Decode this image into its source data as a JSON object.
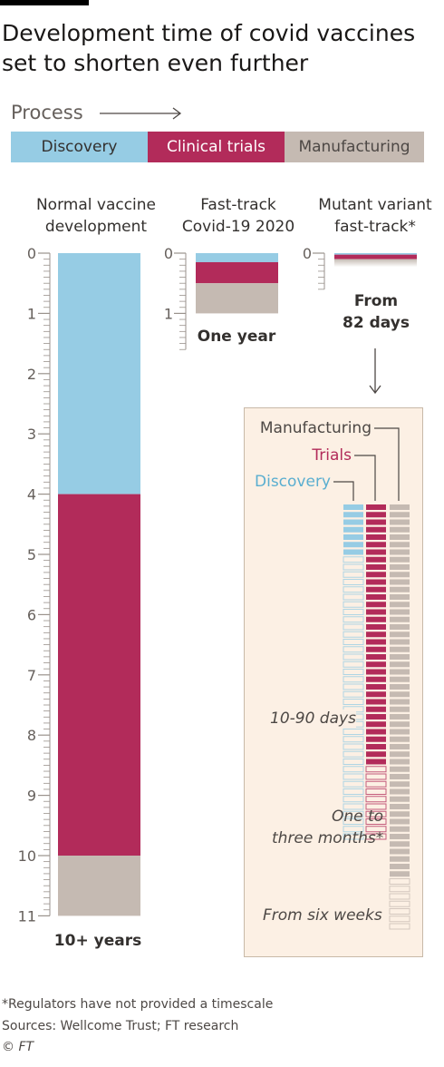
{
  "title_lines": [
    "Development time of covid vaccines",
    "set to shorten even further"
  ],
  "process": {
    "label": "Process"
  },
  "legend": [
    {
      "label": "Discovery",
      "color": "#96cce4",
      "text_color": "#33302e"
    },
    {
      "label": "Clinical trials",
      "color": "#b22b5a",
      "text_color": "#ffffff"
    },
    {
      "label": "Manufacturing",
      "color": "#c5bab2",
      "text_color": "#4d4845"
    }
  ],
  "colors": {
    "discovery": "#96cce4",
    "trials": "#b22b5a",
    "manufacturing": "#c5bab2",
    "detail_panel": "#fcf0e4",
    "panel_border": "#c8b9a8",
    "axis": "#9a928c"
  },
  "chart_data": {
    "type": "bar",
    "y_axis": {
      "unit": "years",
      "range": [
        0,
        11
      ],
      "tick_labels": [
        "0",
        "1",
        "2",
        "3",
        "4",
        "5",
        "6",
        "7",
        "8",
        "9",
        "10",
        "11"
      ]
    },
    "columns": [
      {
        "header": [
          "Normal vaccine",
          "development"
        ],
        "caption": "10+ years",
        "segments": [
          {
            "series": "Discovery",
            "start": 0,
            "end": 4
          },
          {
            "series": "Clinical trials",
            "start": 4,
            "end": 10
          },
          {
            "series": "Manufacturing",
            "start": 10,
            "end": 11
          }
        ]
      },
      {
        "header": [
          "Fast-track",
          "Covid-19 2020"
        ],
        "caption": "One year",
        "axis_labels": [
          "0",
          "1"
        ],
        "segments": [
          {
            "series": "Discovery",
            "start": 0,
            "end": 0.15
          },
          {
            "series": "Clinical trials",
            "start": 0.15,
            "end": 0.5
          },
          {
            "series": "Manufacturing",
            "start": 0.5,
            "end": 1
          }
        ]
      },
      {
        "header": [
          "Mutant variant",
          "fast-track*"
        ],
        "caption": [
          "From",
          "82 days"
        ],
        "axis_labels": [
          "0"
        ],
        "segments": [
          {
            "series": "Discovery",
            "start": 0,
            "end": 0.025
          },
          {
            "series": "Clinical trials",
            "start": 0.025,
            "end": 0.1
          },
          {
            "series": "Manufacturing",
            "start": 0.1,
            "end": 0.23
          }
        ]
      }
    ],
    "detail": {
      "unit": "days",
      "labels": {
        "manufacturing": "Manufacturing",
        "trials": "Trials",
        "discovery": "Discovery"
      },
      "annotations": {
        "discovery": "10-90 days",
        "trials": [
          "One to",
          "three months*"
        ],
        "manufacturing": "From six weeks"
      },
      "discovery_days": {
        "min": 10,
        "max": 90
      },
      "trials_days": {
        "min": 30,
        "max": 90
      },
      "manufacturing_days": {
        "min": 42
      }
    }
  },
  "footer": {
    "note": "*Regulators have not provided a timescale",
    "sources": "Sources: Wellcome Trust; FT research",
    "credit": "© FT"
  }
}
